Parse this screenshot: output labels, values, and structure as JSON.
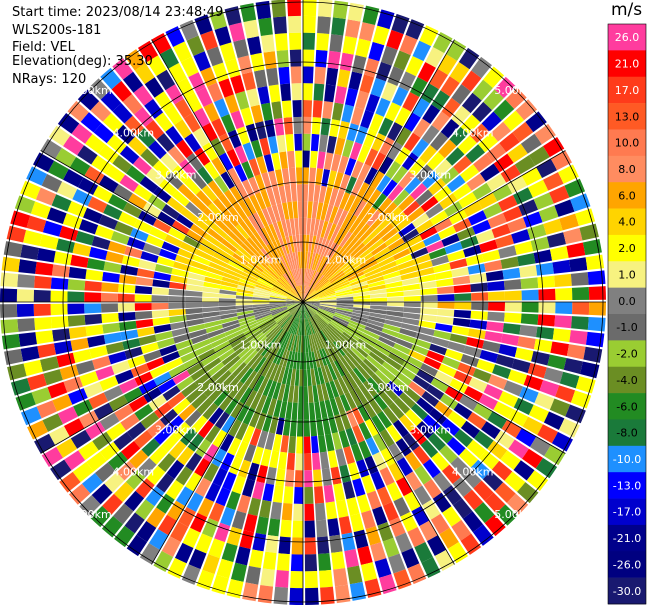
{
  "header": {
    "start_time": "Start time: 2023/08/14 23:48:49",
    "instrument": "WLS200s-181",
    "field": "Field: VEL",
    "elevation": "Elevation(deg): 35.30",
    "nrays": "NRays: 120"
  },
  "colorbar": {
    "unit": "m/s",
    "labels": [
      "26.0",
      "21.0",
      "17.0",
      "13.0",
      "10.0",
      "8.0",
      "6.0",
      "4.0",
      "2.0",
      "1.0",
      "0.0",
      "-1.0",
      "-2.0",
      "-4.0",
      "-6.0",
      "-8.0",
      "-10.0",
      "-13.0",
      "-17.0",
      "-21.0",
      "-26.0",
      "-30.0"
    ],
    "colors": [
      "#ff3c9e",
      "#ff0000",
      "#ff3b1a",
      "#ff5a24",
      "#ff7a50",
      "#ff8c60",
      "#ffa500",
      "#ffd400",
      "#ffff00",
      "#f7f280",
      "#808080",
      "#6b6b6b",
      "#9acd32",
      "#6b8e23",
      "#228b22",
      "#1a7a3a",
      "#1e90ff",
      "#0000ff",
      "#0000cd",
      "#00008b",
      "#000080",
      "#191970"
    ]
  },
  "chart_data": {
    "type": "ppi_polar",
    "field": "VEL",
    "units": "m/s",
    "nrays": 120,
    "elevation_deg": 35.3,
    "range_rings_km": [
      1.0,
      2.0,
      3.0,
      4.0,
      5.0
    ],
    "ring_labels": [
      "1.00km",
      "2.00km",
      "3.00km",
      "4.00km",
      "5.00km"
    ],
    "velocity_scale": [
      26.0,
      21.0,
      17.0,
      13.0,
      10.0,
      8.0,
      6.0,
      4.0,
      2.0,
      1.0,
      0.0,
      -1.0,
      -2.0,
      -4.0,
      -6.0,
      -8.0,
      -10.0,
      -13.0,
      -17.0,
      -21.0,
      -26.0,
      -30.0
    ],
    "valid_range_km": 2.0,
    "pattern": "positive (yellow/orange) toward north, negative (green) toward south, grey near zero east-west; noisy colors beyond ~2km"
  }
}
